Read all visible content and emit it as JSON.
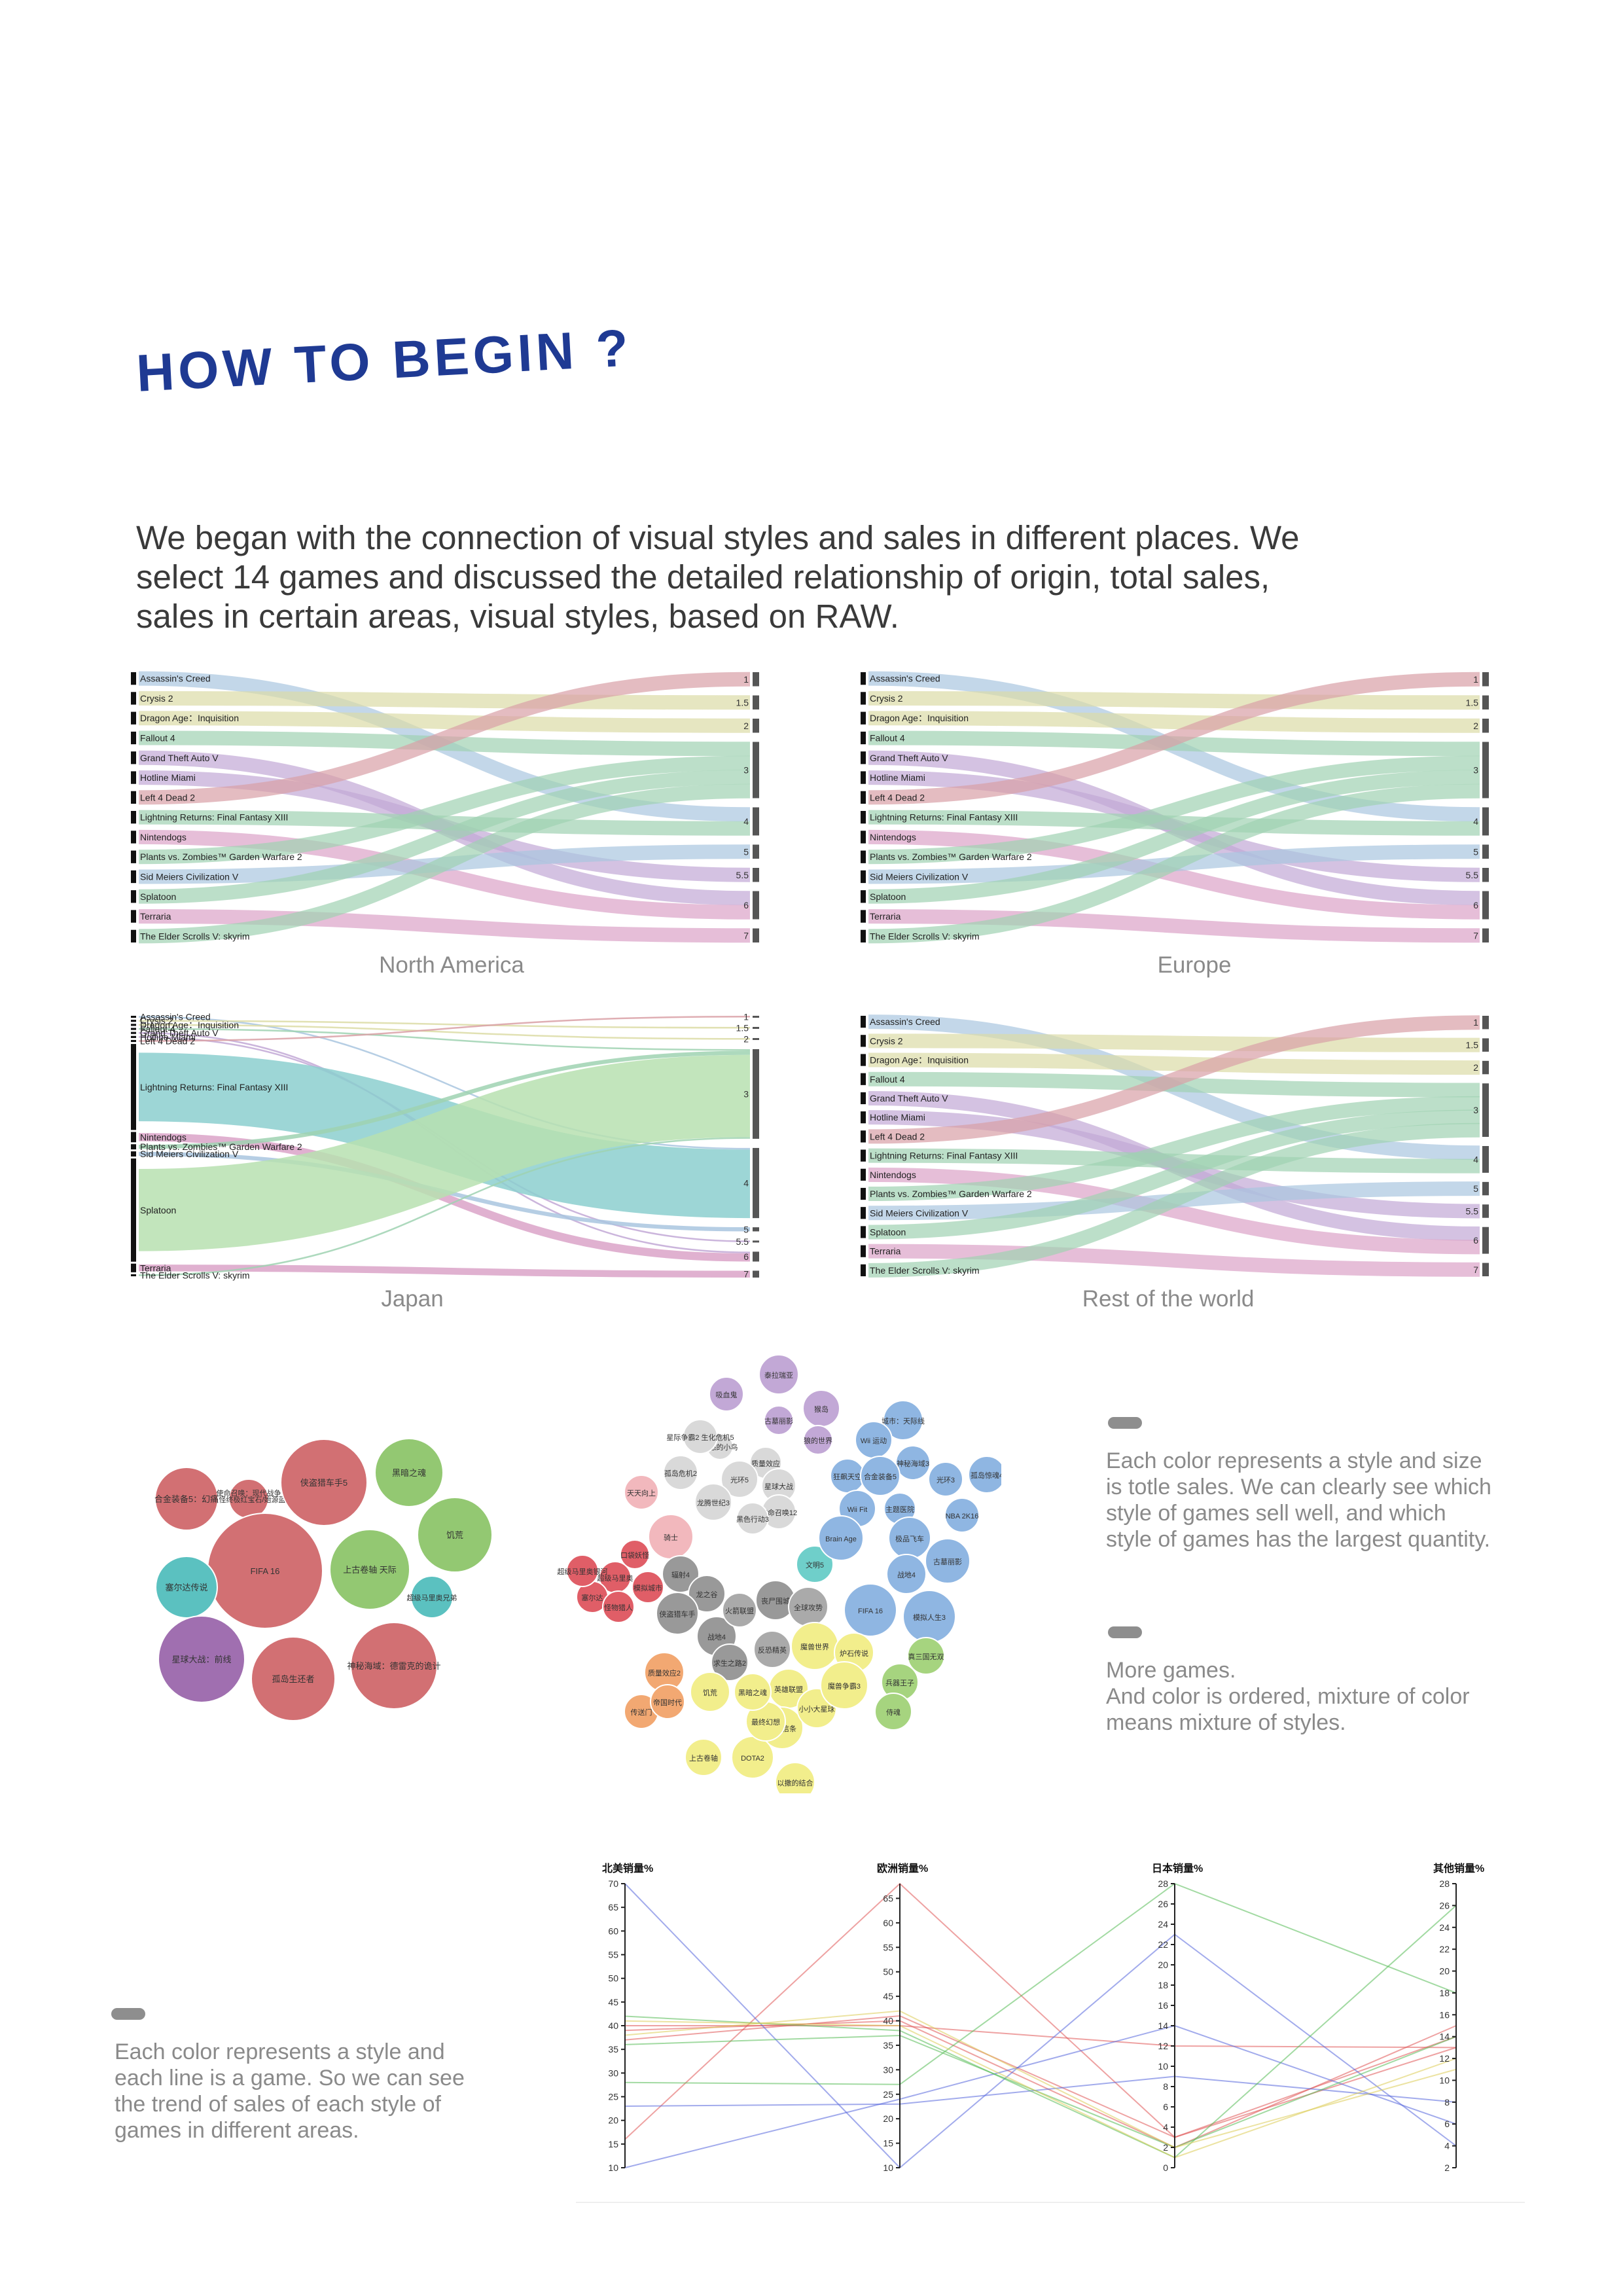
{
  "heading": "HOW TO BEGIN ?",
  "intro": {
    "line1": "We began with the connection of visual styles and sales in different places. We",
    "line2": "select 14 games and discussed the detailed relationship of origin, total sales,",
    "line3": "sales in certain areas, visual styles, based on RAW."
  },
  "colors": {
    "heading": "#1f3a93",
    "red": "#d9a0a6",
    "yellow": "#dcdca6",
    "green": "#9fd2b2",
    "blue": "#a9c6df",
    "purple": "#c2a8d6",
    "pink": "#dba3c8",
    "lavender": "#aeb2e0",
    "japanBlue": "#8ccfcf",
    "japanGreen": "#b7e0b0"
  },
  "sankey": {
    "games": [
      "Assassin's Creed",
      "Crysis 2",
      "Dragon Age：Inquisition",
      "Fallout 4",
      "Grand Theft Auto V",
      "Hotline Miami",
      "Left 4 Dead 2",
      "Lightning Returns: Final Fantasy XIII",
      "Nintendogs",
      "Plants vs. Zombies™ Garden Warfare 2",
      "Sid Meiers Civilization V",
      "Splatoon",
      "Terraria",
      "The Elder Scrolls V: skyrim"
    ],
    "styles": [
      "1",
      "1.5",
      "2",
      "3",
      "4",
      "5",
      "5.5",
      "6",
      "7"
    ],
    "game_style": [
      "4",
      "1.5",
      "2",
      "3",
      "6",
      "5.5",
      "1",
      "4",
      "6",
      "3",
      "5",
      "3",
      "7",
      "3"
    ],
    "regions": [
      "North America",
      "Europe",
      "Japan",
      "Rest of the world"
    ],
    "region_weights": [
      [
        1,
        1,
        1,
        1,
        1,
        1,
        1,
        1,
        1,
        1,
        1,
        1,
        1,
        1
      ],
      [
        1,
        1,
        1,
        1,
        1,
        1,
        1,
        1,
        1,
        1,
        1,
        1,
        1,
        1
      ],
      [
        0.12,
        0.12,
        0.12,
        0.12,
        0.12,
        0.12,
        0.12,
        5,
        0.6,
        0.3,
        0.3,
        6,
        0.5,
        0.12
      ],
      [
        1,
        1,
        1,
        1,
        1,
        1,
        1,
        1,
        1,
        1,
        1,
        1,
        1,
        1
      ]
    ]
  },
  "bubbles": {
    "left": [
      {
        "label": "口袋妖怪终极红宝石/始源蓝宝石",
        "color": "#d27073"
      },
      {
        "label": "合金装备5：幻痛",
        "color": "#d27073"
      },
      {
        "label": "使命召唤：现代战争",
        "color": "#5bc1c0"
      },
      {
        "label": "侠盗猎车手5",
        "color": "#d27073"
      },
      {
        "label": "黑暗之魂",
        "color": "#93c872"
      },
      {
        "label": "饥荒",
        "color": "#93c872"
      },
      {
        "label": "FIFA 16",
        "color": "#d27073"
      },
      {
        "label": "上古卷轴 天际",
        "color": "#93c872"
      },
      {
        "label": "超级马里奥兄弟",
        "color": "#5bc1c0"
      },
      {
        "label": "塞尔达传说",
        "color": "#5bc1c0"
      },
      {
        "label": "星球大战：前线",
        "color": "#a06fb0"
      },
      {
        "label": "孤岛生还者",
        "color": "#d27073"
      },
      {
        "label": "神秘海域：德雷克的诡计",
        "color": "#d27073"
      }
    ],
    "right": [
      {
        "label": "泰拉瑞亚",
        "color": "#c2a8d6"
      },
      {
        "label": "古墓丽影",
        "color": "#c2a8d6"
      },
      {
        "label": "吸血鬼",
        "color": "#c2a8d6"
      },
      {
        "label": "猴岛",
        "color": "#c2a8d6"
      },
      {
        "label": "狼的世界",
        "color": "#c2a8d6"
      },
      {
        "label": "愤怒的小鸟",
        "color": "#d9d9d9"
      },
      {
        "label": "星际争霸2 生化危机5",
        "color": "#d9d9d9"
      },
      {
        "label": "质量效应",
        "color": "#d9d9d9"
      },
      {
        "label": "光环5",
        "color": "#d9d9d9"
      },
      {
        "label": "星球大战",
        "color": "#d9d9d9"
      },
      {
        "label": "孤岛危机2",
        "color": "#d9d9d9"
      },
      {
        "label": "龙腾世纪3",
        "color": "#d9d9d9"
      },
      {
        "label": "使命召唤12",
        "color": "#d9d9d9"
      },
      {
        "label": "黑色行动3",
        "color": "#d9d9d9"
      },
      {
        "label": "天天向上",
        "color": "#f2b8bd"
      },
      {
        "label": "骑士",
        "color": "#f2b8bd"
      },
      {
        "label": "口袋妖怪",
        "color": "#e05e67"
      },
      {
        "label": "超级马里奥",
        "color": "#e05e67"
      },
      {
        "label": "塞尔达",
        "color": "#e05e67"
      },
      {
        "label": "怪物猎人",
        "color": "#e05e67"
      },
      {
        "label": "模拟城市",
        "color": "#e05e67"
      },
      {
        "label": "超级马里奥银河",
        "color": "#e05e67"
      },
      {
        "label": "辐射4",
        "color": "#999999"
      },
      {
        "label": "龙之谷",
        "color": "#999999"
      },
      {
        "label": "侠盗猎车手",
        "color": "#999999"
      },
      {
        "label": "战地4",
        "color": "#999999"
      },
      {
        "label": "火箭联盟",
        "color": "#aaaaaa"
      },
      {
        "label": "求生之路2",
        "color": "#999999"
      },
      {
        "label": "反恐精英",
        "color": "#aaaaaa"
      },
      {
        "label": "丧尸围城",
        "color": "#999999"
      },
      {
        "label": "全球攻势",
        "color": "#aaaaaa"
      },
      {
        "label": "文明5",
        "color": "#6fcfca"
      },
      {
        "label": "城市：天际线",
        "color": "#8fb6e2"
      },
      {
        "label": "Wii 运动",
        "color": "#8fb6e2"
      },
      {
        "label": "狂飙天空",
        "color": "#8fb6e2"
      },
      {
        "label": "神秘海域3",
        "color": "#8fb6e2"
      },
      {
        "label": "合金装备5",
        "color": "#8fb6e2"
      },
      {
        "label": "Wii Fit",
        "color": "#8fb6e2"
      },
      {
        "label": "光环3",
        "color": "#8fb6e2"
      },
      {
        "label": "孤岛惊魂4",
        "color": "#8fb6e2"
      },
      {
        "label": "Brain Age",
        "color": "#8fb6e2"
      },
      {
        "label": "主题医院",
        "color": "#8fb6e2"
      },
      {
        "label": "NBA 2K16",
        "color": "#8fb6e2"
      },
      {
        "label": "极品飞车",
        "color": "#8fb6e2"
      },
      {
        "label": "战地4",
        "color": "#8fb6e2"
      },
      {
        "label": "古墓丽影",
        "color": "#8fb6e2"
      },
      {
        "label": "FIFA 16",
        "color": "#8fb6e2"
      },
      {
        "label": "模拟人生3",
        "color": "#8fb6e2"
      },
      {
        "label": "魔兽世界",
        "color": "#f2ee8c"
      },
      {
        "label": "炉石传说",
        "color": "#f2ee8c"
      },
      {
        "label": "英雄联盟",
        "color": "#f2ee8c"
      },
      {
        "label": "刺客信条",
        "color": "#f2ee8c"
      },
      {
        "label": "小小大星球",
        "color": "#f2ee8c"
      },
      {
        "label": "DOTA2",
        "color": "#f2ee8c"
      },
      {
        "label": "上古卷轴",
        "color": "#f2ee8c"
      },
      {
        "label": "最终幻想",
        "color": "#f2ee8c"
      },
      {
        "label": "以撒的结合",
        "color": "#f2ee8c"
      },
      {
        "label": "魔兽争霸3",
        "color": "#f2ee8c"
      },
      {
        "label": "饥荒",
        "color": "#f2ee8c"
      },
      {
        "label": "黑暗之魂",
        "color": "#f2ee8c"
      },
      {
        "label": "质量效应2",
        "color": "#f2a872"
      },
      {
        "label": "传送门",
        "color": "#f2a872"
      },
      {
        "label": "帝国时代",
        "color": "#f2a872"
      },
      {
        "label": "真三国无双",
        "color": "#a6d47f"
      },
      {
        "label": "兵器王子",
        "color": "#a6d47f"
      },
      {
        "label": "侍魂",
        "color": "#a6d47f"
      }
    ]
  },
  "notes": {
    "bubbles_1": "Each color represents a style and size is totle sales. We can clearly see which style of games sell well, and which style of games has the largest quantity.",
    "bubbles_2a": "More games.",
    "bubbles_2b": "And color is ordered, mixture of color means mixture of styles.",
    "parallel": "Each color represents a style and each line is a game. So we can see the trend of sales of each style of games in different areas."
  },
  "chart_data": [
    {
      "type": "sankey",
      "title": "North America",
      "left_nodes": [
        "Assassin's Creed",
        "Crysis 2",
        "Dragon Age：Inquisition",
        "Fallout 4",
        "Grand Theft Auto V",
        "Hotline Miami",
        "Left 4 Dead 2",
        "Lightning Returns: Final Fantasy XIII",
        "Nintendogs",
        "Plants vs. Zombies™ Garden Warfare 2",
        "Sid Meiers Civilization V",
        "Splatoon",
        "Terraria",
        "The Elder Scrolls V: skyrim"
      ],
      "right_nodes": [
        "1",
        "1.5",
        "2",
        "3",
        "4",
        "5",
        "5.5",
        "6",
        "7"
      ]
    },
    {
      "type": "sankey",
      "title": "Europe",
      "left_nodes": [
        "Assassin's Creed",
        "Crysis 2",
        "Dragon Age：Inquisition",
        "Fallout 4",
        "Grand Theft Auto V",
        "Hotline Miami",
        "Left 4 Dead 2",
        "Lightning Returns: Final Fantasy XIII",
        "Nintendogs",
        "Plants vs. Zombies™ Garden Warfare 2",
        "Sid Meiers Civilization V",
        "Splatoon",
        "Terraria",
        "The Elder Scrolls V: skyrim"
      ],
      "right_nodes": [
        "1",
        "1.5",
        "2",
        "3",
        "4",
        "5",
        "5.5",
        "6",
        "7"
      ]
    },
    {
      "type": "sankey",
      "title": "Japan",
      "left_nodes": [
        "Assassin's Creed",
        "Crysis 2",
        "Dragon Age：Inquisition",
        "Fallout 4",
        "Grand Theft Auto V",
        "Hotline Miami",
        "Left 4 Dead 2",
        "Lightning Returns: Final Fantasy XIII",
        "Nintendogs",
        "Plants vs. Zombies™ Garden Warfare 2",
        "Sid Meiers Civilization V",
        "Splatoon",
        "Terraria",
        "The Elder Scrolls V: skyrim"
      ],
      "right_nodes": [
        "1",
        "1.5",
        "2",
        "3",
        "4",
        "5",
        "5.5",
        "6",
        "7"
      ]
    },
    {
      "type": "sankey",
      "title": "Rest of the world",
      "left_nodes": [
        "Assassin's Creed",
        "Crysis 2",
        "Dragon Age：Inquisition",
        "Fallout 4",
        "Grand Theft Auto V",
        "Hotline Miami",
        "Left 4 Dead 2",
        "Lightning Returns: Final Fantasy XIII",
        "Nintendogs",
        "Plants vs. Zombies™ Garden Warfare 2",
        "Sid Meiers Civilization V",
        "Splatoon",
        "Terraria",
        "The Elder Scrolls V: skyrim"
      ],
      "right_nodes": [
        "1",
        "1.5",
        "2",
        "3",
        "4",
        "5",
        "5.5",
        "6",
        "7"
      ]
    },
    {
      "type": "parallel",
      "axes": [
        {
          "name": "北美销量%",
          "range": [
            10,
            70
          ],
          "ticks": [
            10,
            15,
            20,
            25,
            30,
            35,
            40,
            45,
            50,
            55,
            60,
            65,
            70
          ]
        },
        {
          "name": "欧洲销量%",
          "range": [
            10,
            68
          ],
          "ticks": [
            10,
            15,
            20,
            25,
            30,
            35,
            40,
            45,
            50,
            55,
            60,
            65
          ]
        },
        {
          "name": "日本销量%",
          "range": [
            0,
            28
          ],
          "ticks": [
            0,
            2,
            4,
            6,
            8,
            10,
            12,
            14,
            16,
            18,
            20,
            22,
            24,
            26,
            28
          ]
        },
        {
          "name": "其他销量%",
          "range": [
            2,
            28
          ],
          "ticks": [
            2,
            4,
            6,
            8,
            10,
            12,
            14,
            16,
            18,
            20,
            22,
            24,
            26,
            28
          ]
        }
      ],
      "series": [
        {
          "color": "#e05555",
          "values": [
            16,
            68,
            3,
            13
          ]
        },
        {
          "color": "#e05555",
          "values": [
            39,
            40,
            2,
            15
          ]
        },
        {
          "color": "#e05555",
          "values": [
            40,
            39,
            12,
            13
          ]
        },
        {
          "color": "#e05555",
          "values": [
            37,
            41,
            3,
            14
          ]
        },
        {
          "color": "#5566dd",
          "values": [
            70,
            10,
            23,
            4
          ]
        },
        {
          "color": "#5566dd",
          "values": [
            10,
            24,
            14,
            6
          ]
        },
        {
          "color": "#5566dd",
          "values": [
            23,
            23,
            9,
            8
          ]
        },
        {
          "color": "#55bb55",
          "values": [
            28,
            27,
            28,
            18
          ]
        },
        {
          "color": "#55bb55",
          "values": [
            42,
            38,
            1,
            26
          ]
        },
        {
          "color": "#55bb55",
          "values": [
            36,
            37,
            2,
            14
          ]
        },
        {
          "color": "#ddcc55",
          "values": [
            41,
            39,
            1,
            12
          ]
        },
        {
          "color": "#ddcc55",
          "values": [
            38,
            42,
            2,
            11
          ]
        }
      ]
    }
  ]
}
